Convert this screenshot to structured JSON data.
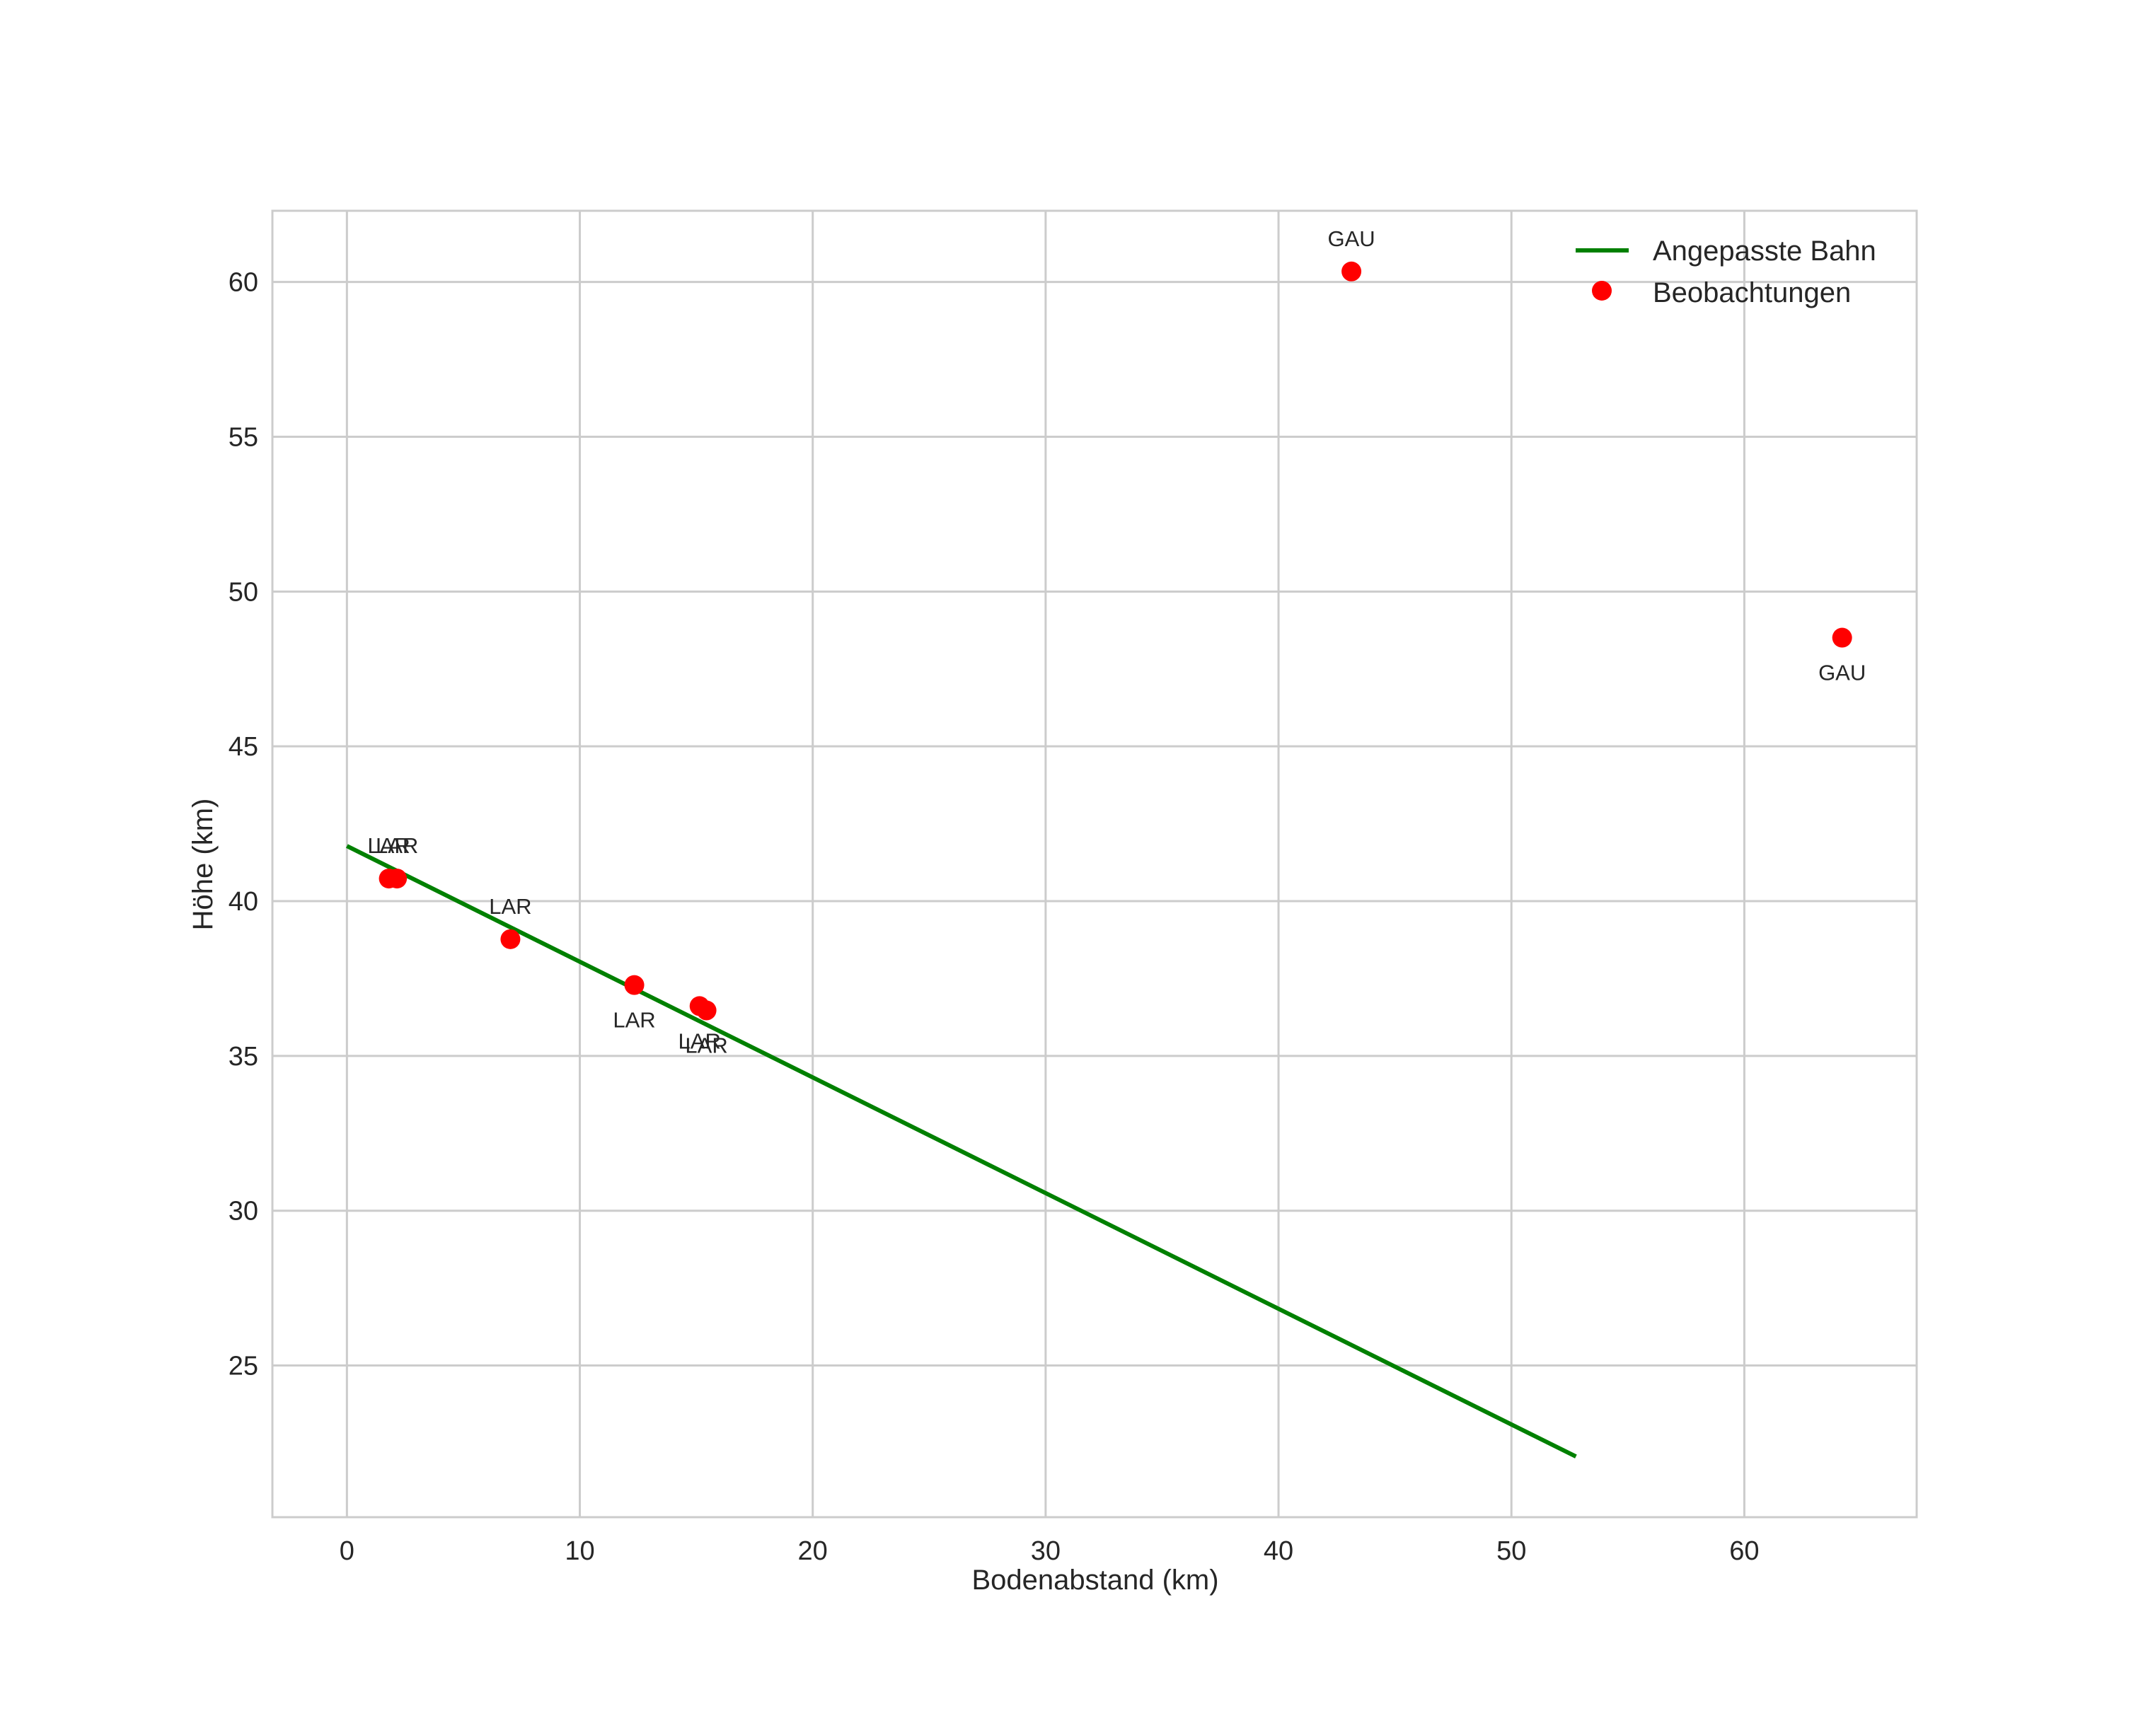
{
  "chart_data": {
    "type": "scatter",
    "title": "",
    "xlabel": "Bodenabstand (km)",
    "ylabel": "Höhe (km)",
    "xlim": [
      -3.2,
      67.4
    ],
    "ylim": [
      20.1,
      62.3
    ],
    "xticks": [
      0,
      10,
      20,
      30,
      40,
      50,
      60
    ],
    "yticks": [
      25,
      30,
      35,
      40,
      45,
      50,
      55,
      60
    ],
    "grid": true,
    "legend_position": "upper right",
    "legend": [
      "Angepasste Bahn",
      "Beobachtungen"
    ],
    "series": [
      {
        "name": "Angepasste Bahn",
        "kind": "line",
        "color": "#008000",
        "x": [
          0,
          52.77
        ],
        "y": [
          41.78,
          22.06
        ]
      },
      {
        "name": "Beobachtungen",
        "kind": "scatter",
        "color": "#ff0000",
        "points": [
          {
            "x": 1.8,
            "y": 40.73,
            "label": "LAR",
            "label_pos": "above"
          },
          {
            "x": 2.15,
            "y": 40.73,
            "label": "LAR",
            "label_pos": "above"
          },
          {
            "x": 7.02,
            "y": 38.77,
            "label": "LAR",
            "label_pos": "above"
          },
          {
            "x": 12.34,
            "y": 37.29,
            "label": "LAR",
            "label_pos": "below"
          },
          {
            "x": 15.14,
            "y": 36.61,
            "label": "LAR",
            "label_pos": "below"
          },
          {
            "x": 15.44,
            "y": 36.47,
            "label": "LAR",
            "label_pos": "below"
          },
          {
            "x": 43.13,
            "y": 60.34,
            "label": "GAU",
            "label_pos": "above"
          },
          {
            "x": 64.2,
            "y": 48.51,
            "label": "GAU",
            "label_pos": "below"
          }
        ]
      }
    ]
  },
  "colors": {
    "line": "#008000",
    "points": "#ff0000",
    "grid": "#cccccc",
    "text": "#262626"
  }
}
